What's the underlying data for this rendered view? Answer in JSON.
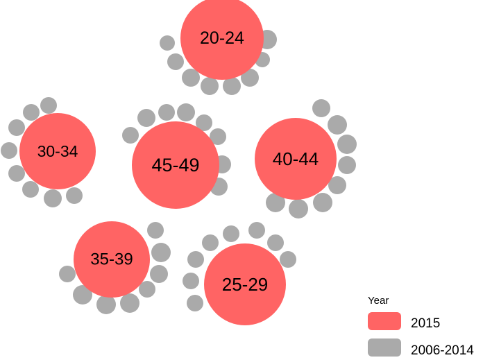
{
  "chart_data": {
    "type": "bubble-cluster",
    "colors": {
      "2015": "#ff6464",
      "2006-2014": "#aaaaaa"
    },
    "legend": {
      "title": "Year",
      "entries": [
        {
          "label": "2015",
          "color": "#ff6464"
        },
        {
          "label": "2006-2014",
          "color": "#aaaaaa"
        }
      ]
    },
    "clusters": [
      {
        "label": "20-24",
        "year_2015": 1,
        "years_2006_2014_count": 9
      },
      {
        "label": "30-34",
        "year_2015": 1,
        "years_2006_2014_count": 9
      },
      {
        "label": "45-49",
        "year_2015": 1,
        "years_2006_2014_count": 9
      },
      {
        "label": "40-44",
        "year_2015": 1,
        "years_2006_2014_count": 9
      },
      {
        "label": "35-39",
        "year_2015": 1,
        "years_2006_2014_count": 9
      },
      {
        "label": "25-29",
        "year_2015": 1,
        "years_2006_2014_count": 9
      }
    ]
  }
}
